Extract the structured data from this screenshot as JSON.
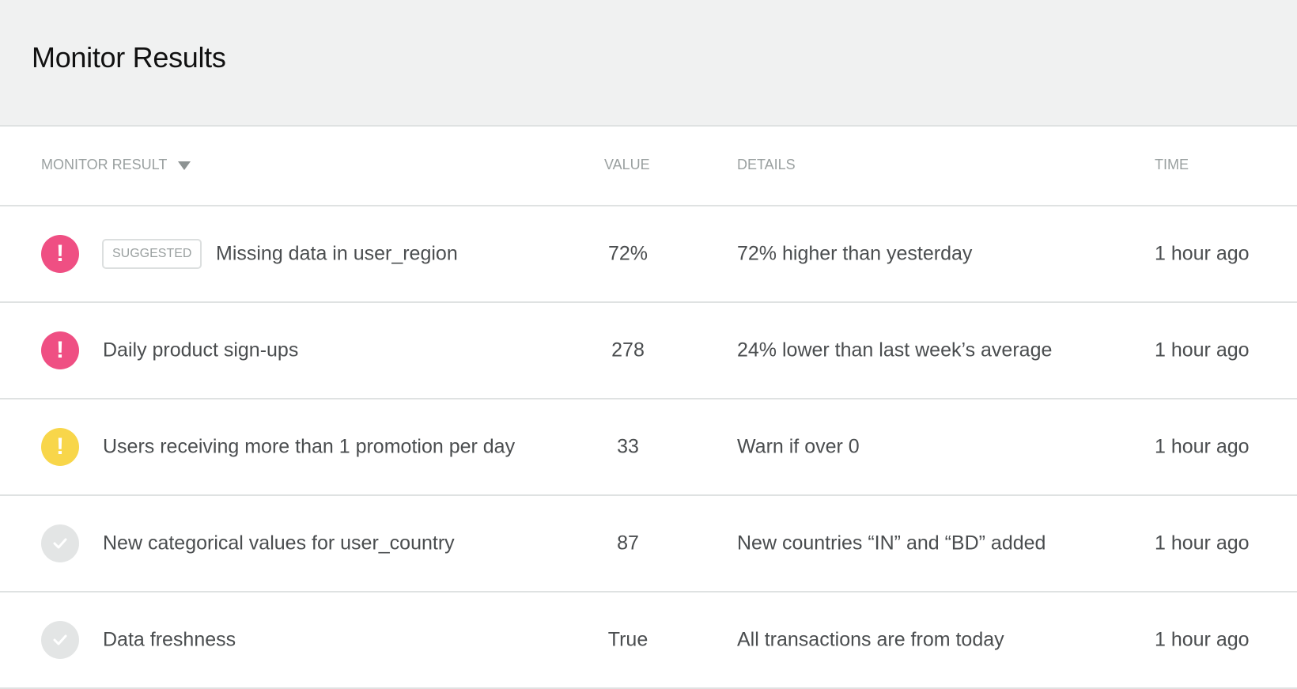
{
  "title": "Monitor Results",
  "columns": {
    "monitor_result": "MONITOR RESULT",
    "value": "VALUE",
    "details": "DETAILS",
    "time": "TIME"
  },
  "colors": {
    "error": "#ef4f83",
    "warning": "#f8d64a",
    "ok": "#e3e5e5"
  },
  "rows": [
    {
      "status": "error",
      "icon": "exclamation-icon",
      "badge": "SUGGESTED",
      "name": "Missing data in user_region",
      "value": "72%",
      "details": "72% higher than yesterday",
      "time": "1 hour ago"
    },
    {
      "status": "error",
      "icon": "exclamation-icon",
      "name": "Daily product sign-ups",
      "value": "278",
      "details": "24% lower than last week’s average",
      "time": "1 hour ago"
    },
    {
      "status": "warning",
      "icon": "exclamation-icon",
      "name": "Users receiving more than 1 promotion per day",
      "value": "33",
      "details": "Warn if over 0",
      "time": "1 hour ago"
    },
    {
      "status": "ok",
      "icon": "check-icon",
      "name": "New categorical values for user_country",
      "value": "87",
      "details": "New countries “IN” and “BD” added",
      "time": "1 hour ago"
    },
    {
      "status": "ok",
      "icon": "check-icon",
      "name": "Data freshness",
      "value": "True",
      "details": "All transactions are from today",
      "time": "1 hour ago"
    }
  ]
}
